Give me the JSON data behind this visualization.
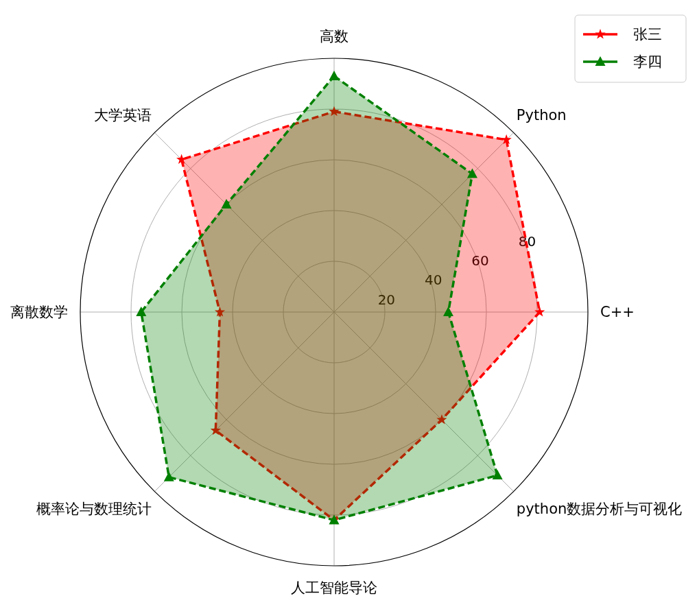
{
  "chart_data": {
    "type": "radar",
    "categories": [
      "高数",
      "Python",
      "C++",
      "python数据分析与可视化",
      "人工智能导论",
      "概率论与数理统计",
      "离散数学",
      "大学英语"
    ],
    "series": [
      {
        "name": "张三",
        "color": "#ff0000",
        "marker": "star",
        "values": [
          79,
          96,
          81,
          60,
          82,
          66,
          45,
          85
        ]
      },
      {
        "name": "李四",
        "color": "#008000",
        "marker": "triangle",
        "values": [
          93,
          77,
          45,
          91,
          82,
          92,
          76,
          60
        ]
      }
    ],
    "ylim": [
      0,
      100
    ],
    "yticks": [
      20,
      40,
      60,
      80
    ],
    "grid": true,
    "legend": "top right",
    "line_style": "dashed"
  }
}
